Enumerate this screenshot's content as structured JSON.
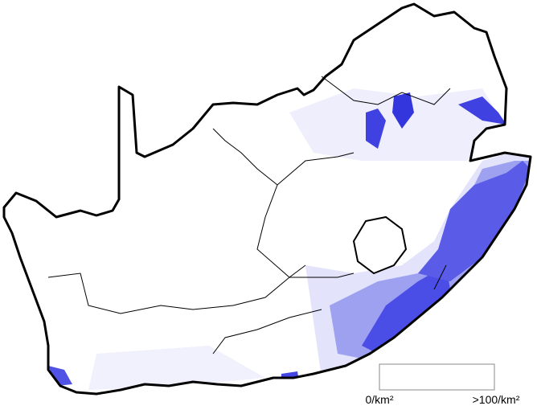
{
  "legend": {
    "min_label": "0/km²",
    "max_label": ">100/km²"
  }
}
